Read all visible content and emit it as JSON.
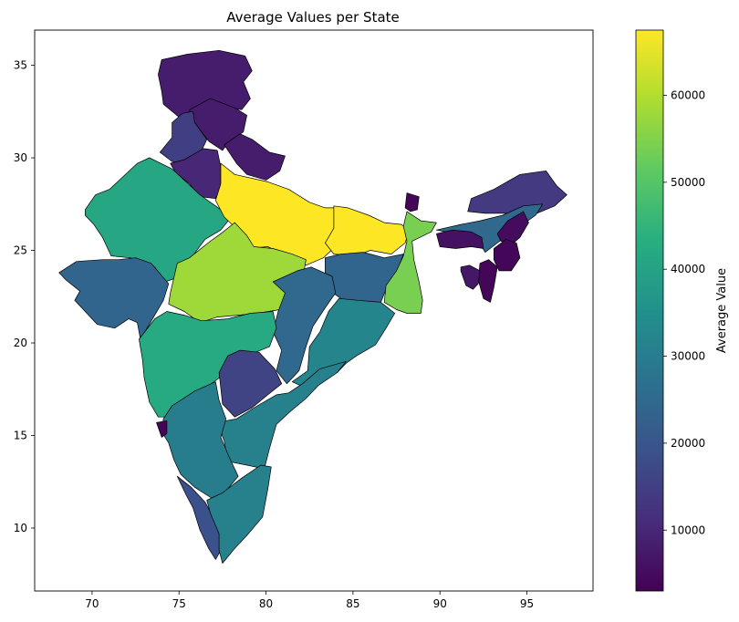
{
  "chart_data": {
    "type": "choropleth",
    "title": "Average Values per State",
    "xlabel": "",
    "ylabel": "",
    "xlim": [
      66.7,
      98.8
    ],
    "ylim": [
      6.6,
      36.9
    ],
    "x_ticks": [
      70,
      75,
      80,
      85,
      90,
      95
    ],
    "y_ticks": [
      10,
      15,
      20,
      25,
      30,
      35
    ],
    "colorbar": {
      "label": "Average Value",
      "colormap": "viridis",
      "range": [
        3000,
        67500
      ],
      "ticks": [
        10000,
        20000,
        30000,
        40000,
        50000,
        60000
      ]
    },
    "regions": [
      {
        "id": "jammu-kashmir",
        "value": 8000
      },
      {
        "id": "himachal-pradesh",
        "value": 8000
      },
      {
        "id": "punjab",
        "value": 15000
      },
      {
        "id": "haryana",
        "value": 10000
      },
      {
        "id": "uttarakhand",
        "value": 8000
      },
      {
        "id": "rajasthan",
        "value": 41000
      },
      {
        "id": "uttar-pradesh",
        "value": 67500
      },
      {
        "id": "gujarat",
        "value": 24000
      },
      {
        "id": "madhya-pradesh",
        "value": 58000
      },
      {
        "id": "bihar",
        "value": 67500
      },
      {
        "id": "jharkhand",
        "value": 24000
      },
      {
        "id": "west-bengal",
        "value": 54000
      },
      {
        "id": "chhattisgarh",
        "value": 25000
      },
      {
        "id": "odisha",
        "value": 32000
      },
      {
        "id": "maharashtra",
        "value": 42000
      },
      {
        "id": "telangana",
        "value": 16000
      },
      {
        "id": "andhra-pradesh",
        "value": 31000
      },
      {
        "id": "karnataka",
        "value": 30000
      },
      {
        "id": "goa",
        "value": 4000
      },
      {
        "id": "kerala",
        "value": 19000
      },
      {
        "id": "tamil-nadu",
        "value": 31000
      },
      {
        "id": "sikkim",
        "value": 4000
      },
      {
        "id": "arunachal-pradesh",
        "value": 14000
      },
      {
        "id": "assam",
        "value": 25000
      },
      {
        "id": "meghalaya",
        "value": 6000
      },
      {
        "id": "nagaland",
        "value": 5000
      },
      {
        "id": "manipur",
        "value": 4000
      },
      {
        "id": "mizoram",
        "value": 4000
      },
      {
        "id": "tripura",
        "value": 7000
      }
    ]
  }
}
